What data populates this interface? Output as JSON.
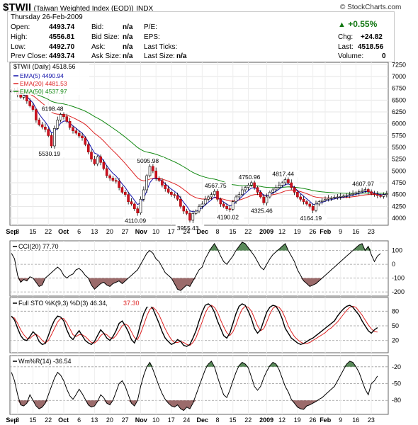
{
  "header": {
    "symbol": "$TWII",
    "name": "(Taiwan Weighted Index (EOD))",
    "exchange": "INDX",
    "watermark": "© StockCharts.com",
    "date": "Thursday   26-Feb-2009"
  },
  "quote": {
    "open_label": "Open:",
    "open": "4493.74",
    "high_label": "High:",
    "high": "4556.81",
    "low_label": "Low:",
    "low": "4492.70",
    "prev_label": "Prev Close:",
    "prev": "4493.74",
    "bid_label": "Bid:",
    "bid": "n/a",
    "bidsize_label": "Bid Size:",
    "bidsize": "n/a",
    "ask_label": "Ask:",
    "ask": "n/a",
    "asksize_label": "Ask Size:",
    "asksize": "n/a",
    "pe_label": "P/E:",
    "eps_label": "EPS:",
    "ticks_label": "Last Ticks:",
    "lastsize_label": "Last Size:",
    "lastsize": "n/a",
    "change_pct": "+0.55%",
    "chg_label": "Chg:",
    "chg": "+24.82",
    "last_label": "Last:",
    "last": "4518.56",
    "vol_label": "Volume:",
    "vol": "0",
    "up_color": "#117711"
  },
  "chart_data": [
    {
      "type": "candlestick",
      "legend": {
        "main": "$TWII (Daily) 4518.56",
        "ema5": "EMA(5) 4490.94",
        "ema20": "EMA(20) 4481.53",
        "ema50": "EMA(50) 4537.97"
      },
      "x_labels": [
        "Sep",
        "8",
        "15",
        "22",
        "Oct",
        "6",
        "13",
        "20",
        "27",
        "Nov",
        "10",
        "17",
        "24",
        "Dec",
        "8",
        "15",
        "22",
        "2009",
        "12",
        "19",
        "26",
        "Feb",
        "9",
        "16",
        "23"
      ],
      "y_ticks": [
        4000,
        4250,
        4500,
        4750,
        5000,
        5250,
        5500,
        5750,
        6000,
        6250,
        6500,
        6750,
        7000,
        7250
      ],
      "ylim": [
        3850,
        7300
      ],
      "annotations": [
        {
          "text": "6198.48",
          "i": 14,
          "v": 6198.48
        },
        {
          "text": "5530.19",
          "i": 13,
          "v": 5530.19
        },
        {
          "text": "5095.98",
          "i": 45,
          "v": 5095.98
        },
        {
          "text": "4110.09",
          "i": 41,
          "v": 4110.09
        },
        {
          "text": "3955.43",
          "i": 58,
          "v": 3955.43
        },
        {
          "text": "4567.75",
          "i": 67,
          "v": 4567.75
        },
        {
          "text": "4190.02",
          "i": 71,
          "v": 4190.02
        },
        {
          "text": "4750.96",
          "i": 78,
          "v": 4750.96
        },
        {
          "text": "4325.46",
          "i": 82,
          "v": 4325.46
        },
        {
          "text": "4817.44",
          "i": 89,
          "v": 4817.44
        },
        {
          "text": "4164.19",
          "i": 98,
          "v": 4164.19
        },
        {
          "text": "4607.97",
          "i": 115,
          "v": 4607.97
        }
      ],
      "close": [
        6690,
        6710,
        6620,
        6560,
        6600,
        6480,
        6380,
        6300,
        6080,
        5980,
        5930,
        5880,
        5750,
        5530,
        5900,
        6080,
        6198,
        6150,
        6050,
        5920,
        5850,
        5800,
        5740,
        5700,
        5560,
        5400,
        5250,
        5150,
        5300,
        5180,
        5050,
        4900,
        4850,
        4800,
        4780,
        4650,
        4550,
        4500,
        4350,
        4300,
        4200,
        4110,
        4400,
        4600,
        4900,
        5096,
        5000,
        4850,
        4800,
        4700,
        4620,
        4550,
        4500,
        4480,
        4400,
        4250,
        4150,
        4100,
        3955,
        4100,
        4150,
        4250,
        4300,
        4400,
        4450,
        4500,
        4568,
        4400,
        4300,
        4250,
        4200,
        4190,
        4350,
        4450,
        4500,
        4600,
        4650,
        4700,
        4751,
        4650,
        4550,
        4450,
        4325,
        4450,
        4550,
        4600,
        4650,
        4700,
        4750,
        4817,
        4750,
        4650,
        4550,
        4450,
        4400,
        4350,
        4300,
        4250,
        4164,
        4300,
        4350,
        4380,
        4400,
        4420,
        4430,
        4440,
        4450,
        4460,
        4470,
        4480,
        4500,
        4520,
        4540,
        4560,
        4580,
        4608,
        4560,
        4520,
        4500,
        4480,
        4460,
        4500,
        4519
      ],
      "ema5_color": "#1111aa",
      "ema20_color": "#dd2222",
      "ema50_color": "#118811"
    },
    {
      "type": "line",
      "legend": "CCI(20) 77.70",
      "y_ticks": [
        100,
        0,
        -100,
        -200
      ],
      "ylim": [
        -230,
        170
      ],
      "overbought": 100,
      "oversold": -100,
      "values": [
        80,
        40,
        -80,
        -130,
        -110,
        -120,
        -90,
        -100,
        -130,
        -160,
        -150,
        -100,
        -80,
        -60,
        -40,
        -20,
        -40,
        -80,
        -100,
        -80,
        -70,
        -40,
        -30,
        -50,
        -80,
        -100,
        -150,
        -180,
        -160,
        -140,
        -130,
        -150,
        -160,
        -140,
        -130,
        -120,
        -140,
        -120,
        -100,
        -80,
        -60,
        -40,
        0,
        40,
        80,
        100,
        80,
        40,
        20,
        -20,
        -60,
        -80,
        -100,
        -140,
        -180,
        -190,
        -170,
        -150,
        -160,
        -120,
        -80,
        -40,
        -20,
        40,
        80,
        120,
        150,
        110,
        60,
        20,
        0,
        30,
        60,
        100,
        130,
        160,
        150,
        120,
        90,
        60,
        20,
        -20,
        -40,
        0,
        40,
        70,
        90,
        110,
        130,
        150,
        100,
        60,
        20,
        -40,
        -80,
        -120,
        -140,
        -160,
        -150,
        -140,
        -120,
        -100,
        -80,
        -60,
        -40,
        -20,
        0,
        20,
        40,
        60,
        80,
        100,
        120,
        140,
        150,
        100,
        130,
        70,
        20,
        60,
        77.7
      ]
    },
    {
      "type": "line",
      "legend_k": "Full STO %K(9,3) %D(3) 46.34,",
      "legend_d": "37.30",
      "y_ticks": [
        80,
        50,
        20
      ],
      "ylim": [
        -5,
        108
      ],
      "k": [
        70,
        62,
        45,
        30,
        22,
        20,
        28,
        38,
        32,
        18,
        12,
        14,
        30,
        48,
        62,
        70,
        68,
        60,
        42,
        28,
        22,
        32,
        40,
        30,
        20,
        15,
        12,
        18,
        30,
        42,
        35,
        25,
        20,
        28,
        40,
        55,
        60,
        50,
        38,
        22,
        15,
        30,
        55,
        75,
        88,
        92,
        85,
        70,
        55,
        38,
        25,
        18,
        12,
        15,
        22,
        18,
        10,
        8,
        12,
        25,
        40,
        60,
        78,
        92,
        95,
        90,
        78,
        60,
        45,
        30,
        25,
        35,
        55,
        75,
        90,
        95,
        92,
        80,
        65,
        45,
        35,
        42,
        60,
        78,
        88,
        92,
        90,
        80,
        65,
        45,
        35,
        25,
        20,
        15,
        12,
        14,
        18,
        22,
        25,
        30,
        35,
        40,
        45,
        50,
        55,
        60,
        70,
        78,
        85,
        90,
        92,
        88,
        80,
        72,
        60,
        50,
        40,
        35,
        42,
        46.34
      ],
      "d": [
        68,
        66,
        55,
        42,
        32,
        25,
        24,
        30,
        33,
        28,
        20,
        15,
        20,
        32,
        45,
        58,
        65,
        65,
        56,
        44,
        32,
        28,
        32,
        32,
        28,
        22,
        16,
        15,
        20,
        30,
        35,
        32,
        26,
        24,
        30,
        40,
        50,
        54,
        50,
        38,
        26,
        22,
        35,
        52,
        70,
        84,
        88,
        82,
        72,
        58,
        44,
        32,
        22,
        16,
        16,
        18,
        16,
        12,
        10,
        16,
        26,
        42,
        58,
        76,
        88,
        92,
        88,
        78,
        62,
        48,
        36,
        30,
        38,
        52,
        70,
        84,
        90,
        88,
        80,
        66,
        50,
        40,
        44,
        58,
        74,
        86,
        90,
        88,
        80,
        66,
        50,
        38,
        28,
        22,
        17,
        14,
        14,
        16,
        20,
        24,
        28,
        32,
        36,
        42,
        46,
        52,
        58,
        66,
        74,
        82,
        88,
        90,
        88,
        80,
        72,
        62,
        52,
        44,
        38,
        37.3
      ]
    },
    {
      "type": "line",
      "legend": "Wm%R(14) -36.54",
      "y_ticks": [
        -20,
        -50,
        -80
      ],
      "ylim": [
        -105,
        0
      ],
      "overbought": -20,
      "oversold": -80,
      "values": [
        -30,
        -45,
        -70,
        -88,
        -90,
        -85,
        -70,
        -80,
        -90,
        -95,
        -92,
        -85,
        -70,
        -55,
        -40,
        -30,
        -35,
        -45,
        -60,
        -72,
        -78,
        -70,
        -60,
        -68,
        -78,
        -88,
        -92,
        -90,
        -82,
        -70,
        -75,
        -85,
        -88,
        -80,
        -65,
        -50,
        -45,
        -55,
        -70,
        -85,
        -90,
        -80,
        -55,
        -35,
        -20,
        -12,
        -25,
        -40,
        -55,
        -68,
        -78,
        -85,
        -90,
        -92,
        -88,
        -95,
        -98,
        -92,
        -95,
        -85,
        -70,
        -55,
        -40,
        -25,
        -15,
        -10,
        -20,
        -38,
        -55,
        -70,
        -75,
        -62,
        -45,
        -30,
        -18,
        -12,
        -15,
        -22,
        -38,
        -55,
        -62,
        -55,
        -40,
        -28,
        -18,
        -12,
        -15,
        -25,
        -40,
        -55,
        -65,
        -78,
        -85,
        -92,
        -95,
        -96,
        -90,
        -88,
        -85,
        -82,
        -78,
        -75,
        -70,
        -65,
        -60,
        -55,
        -45,
        -35,
        -25,
        -15,
        -10,
        -12,
        -20,
        -30,
        -45,
        -60,
        -70,
        -50,
        -45,
        -36.54
      ]
    }
  ]
}
